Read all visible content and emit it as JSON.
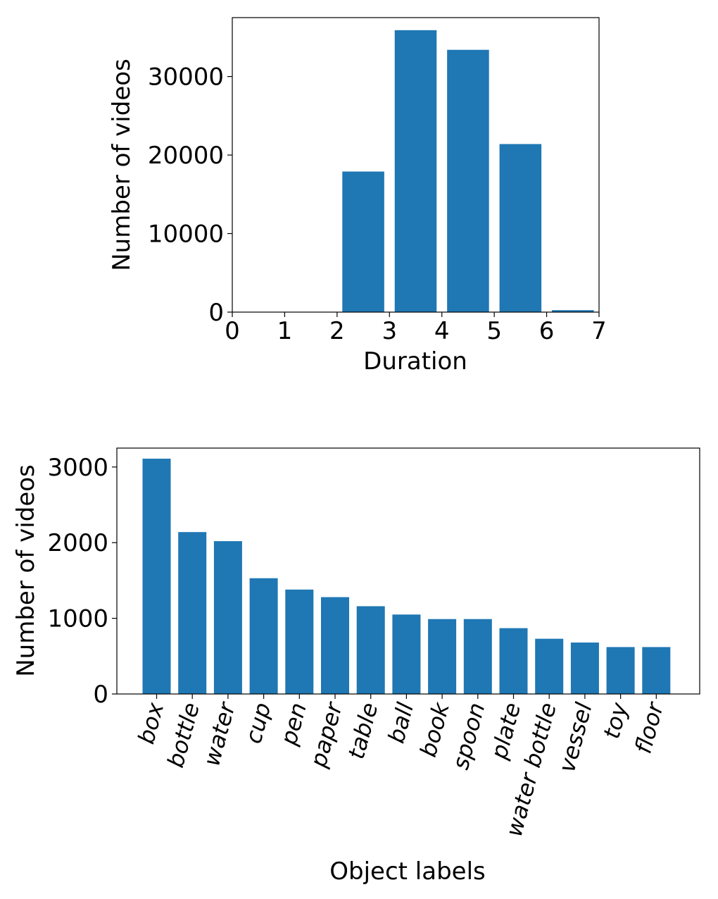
{
  "chart_data": [
    {
      "type": "bar",
      "title": "",
      "xlabel": "Duration",
      "ylabel": "Number of videos",
      "x_ticks": [
        "0",
        "1",
        "2",
        "3",
        "4",
        "5",
        "6",
        "7"
      ],
      "y_ticks": [
        "0",
        "10000",
        "20000",
        "30000"
      ],
      "xlim": [
        0,
        7
      ],
      "ylim": [
        0,
        37500
      ],
      "grid": false,
      "bar_color": "#1f77b4",
      "bins": [
        {
          "start": 2,
          "end": 3,
          "value": 17900
        },
        {
          "start": 3,
          "end": 4,
          "value": 35900
        },
        {
          "start": 4,
          "end": 5,
          "value": 33400
        },
        {
          "start": 5,
          "end": 6,
          "value": 21400
        },
        {
          "start": 6,
          "end": 7,
          "value": 250
        }
      ]
    },
    {
      "type": "bar",
      "title": "",
      "xlabel": "Object labels",
      "ylabel": "Number of videos",
      "y_ticks": [
        "0",
        "1000",
        "2000",
        "3000"
      ],
      "ylim": [
        0,
        3250
      ],
      "grid": false,
      "bar_color": "#1f77b4",
      "categories": [
        "box",
        "bottle",
        "water",
        "cup",
        "pen",
        "paper",
        "table",
        "ball",
        "book",
        "spoon",
        "plate",
        "water bottle",
        "vessel",
        "toy",
        "floor"
      ],
      "values": [
        3110,
        2140,
        2020,
        1530,
        1380,
        1280,
        1160,
        1050,
        990,
        990,
        870,
        730,
        680,
        620,
        620
      ]
    }
  ]
}
